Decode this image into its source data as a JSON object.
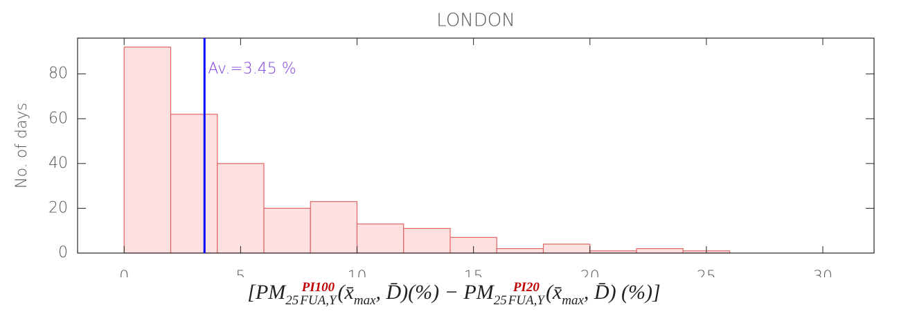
{
  "chart_data": {
    "type": "histogram",
    "title": "LONDON",
    "ylabel": "No. of days",
    "xlabel": [
      {
        "text": "[PM"
      },
      {
        "text": "25",
        "pos": "sub"
      },
      {
        "top": "PI100",
        "bottom": "FUA,Y"
      },
      {
        "text": "(x̄"
      },
      {
        "text": "max",
        "pos": "sub"
      },
      {
        "text": ", D̄)(%) − PM"
      },
      {
        "text": "25",
        "pos": "sub"
      },
      {
        "top": "PI20",
        "bottom": "FUA,Y"
      },
      {
        "text": "(x̄"
      },
      {
        "text": "max",
        "pos": "sub"
      },
      {
        "text": ", D̄) (%)]"
      }
    ],
    "bins": [
      0,
      2,
      4,
      6,
      8,
      10,
      12,
      14,
      16,
      18,
      20,
      22,
      24,
      26,
      28,
      30,
      32
    ],
    "values": [
      92,
      62,
      40,
      20,
      23,
      13,
      11,
      7,
      2,
      4,
      1,
      2,
      1,
      0,
      0,
      0
    ],
    "color": "#fde0e0",
    "edge_color": "#e06666",
    "average": 3.45,
    "average_color": "#0000ff",
    "annotation": "Av.=3.45 %",
    "annotation_color": "#8040e0",
    "xlim": [
      -2,
      32.2
    ],
    "xticks": [
      0,
      5,
      10,
      15,
      20,
      25,
      30
    ],
    "ylim": [
      0,
      96
    ],
    "yticks": [
      0,
      20,
      40,
      60,
      80
    ]
  }
}
